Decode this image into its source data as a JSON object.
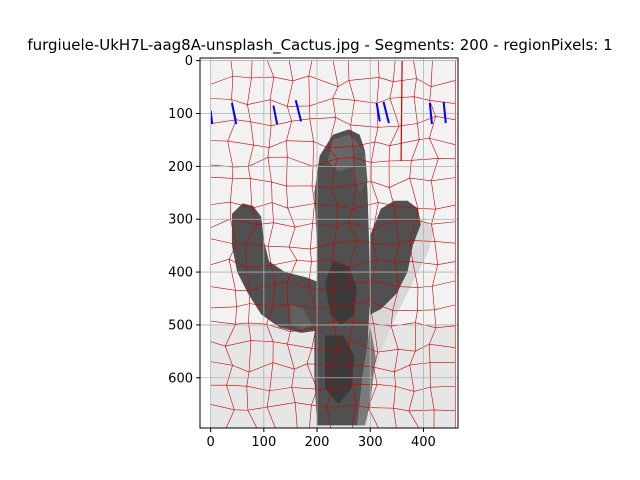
{
  "chart_data": {
    "type": "image",
    "title": "furgiuele-UkH7L-aag8A-unsplash_Cactus.jpg - Segments: 200 - regionPixels: 1",
    "xlabel": "",
    "ylabel": "",
    "xlim": [
      -20,
      465
    ],
    "ylim": [
      695,
      -5
    ],
    "image_extent": [
      0,
      460,
      0,
      695
    ],
    "xticks": [
      0,
      100,
      200,
      300,
      400
    ],
    "yticks": [
      0,
      100,
      200,
      300,
      400,
      500,
      600
    ],
    "grid": true,
    "colors": {
      "background": "#f2f2f2",
      "boundary": "#cc0000",
      "marker": "#0000ff",
      "cactus_dark": "#505050",
      "cactus_darker": "#3a3a3a",
      "cactus_mid": "#7a7a7a",
      "shadow_light": "#d8d8d8"
    },
    "description_elements": {
      "cactus_segments_gray": [
        "#4a4a4a",
        "#555555",
        "#5e5e5e",
        "#666666",
        "#3d3d3d",
        "#707070"
      ]
    }
  }
}
